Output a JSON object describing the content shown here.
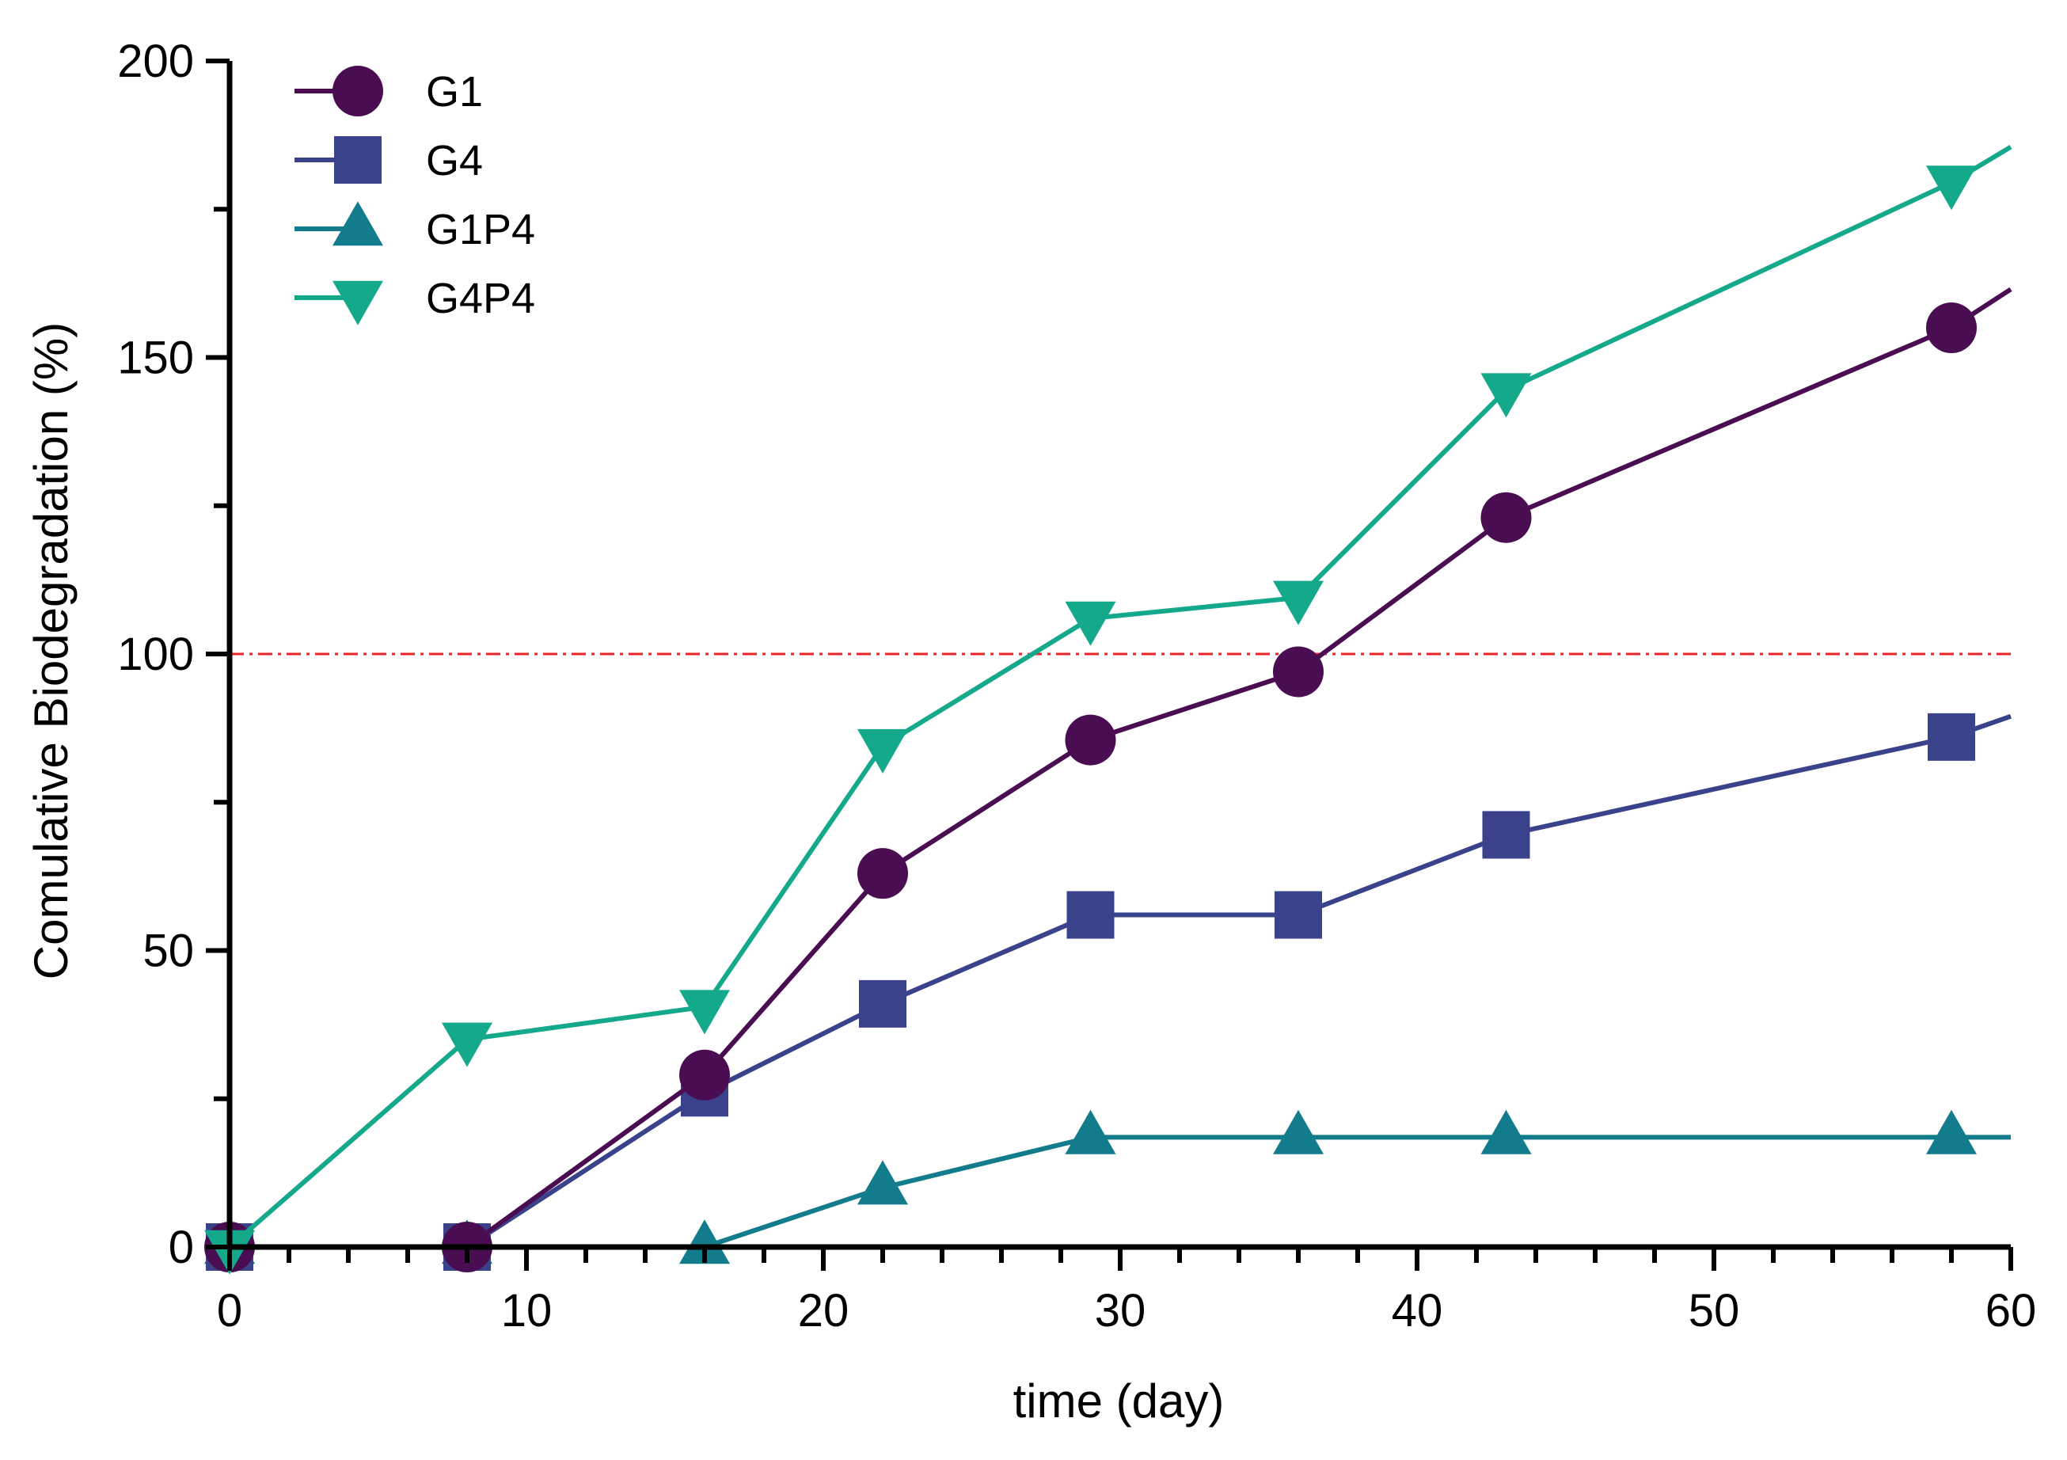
{
  "chart_data": {
    "type": "line",
    "title": "",
    "xlabel": "time (day)",
    "ylabel": "Comulative Biodegradation (%)",
    "xlim": [
      0,
      60
    ],
    "ylim": [
      0,
      200
    ],
    "xticks": [
      "0",
      "10",
      "20",
      "30",
      "40",
      "50",
      "60"
    ],
    "yticks": [
      "0",
      "50",
      "100",
      "150",
      "200"
    ],
    "reference_line": {
      "y": 100,
      "color": "#e8232a",
      "style": "dash-dot"
    },
    "legend_position": "top-left",
    "series": [
      {
        "name": "G1",
        "marker": "circle",
        "color": "#4a0d52",
        "x": [
          0,
          8,
          16,
          22,
          29,
          36,
          43,
          58
        ],
        "values": [
          0,
          0,
          29,
          63,
          85.5,
          97,
          123,
          155
        ],
        "trend_end": {
          "x": 60,
          "y": 161.5
        }
      },
      {
        "name": "G4",
        "marker": "square",
        "color": "#3a428c",
        "x": [
          0,
          8,
          16,
          22,
          29,
          36,
          43,
          58
        ],
        "values": [
          0,
          0,
          26,
          41,
          56,
          56,
          69.5,
          86
        ],
        "trend_end": {
          "x": 60,
          "y": 89.5
        }
      },
      {
        "name": "G1P4",
        "marker": "triangle-up",
        "color": "#127b8c",
        "x": [
          0,
          8,
          16,
          22,
          29,
          36,
          43,
          58
        ],
        "values": [
          0,
          0,
          0,
          10,
          18.5,
          18.5,
          18.5,
          18.5
        ],
        "trend_end": {
          "x": 60,
          "y": 18.5
        }
      },
      {
        "name": "G4P4",
        "marker": "triangle-down",
        "color": "#15a98c",
        "x": [
          0,
          8,
          16,
          22,
          29,
          36,
          43,
          58
        ],
        "values": [
          0,
          35,
          40.5,
          84.5,
          106,
          109.5,
          144.5,
          179.5
        ],
        "trend_end": {
          "x": 60,
          "y": 185.5
        }
      }
    ]
  }
}
